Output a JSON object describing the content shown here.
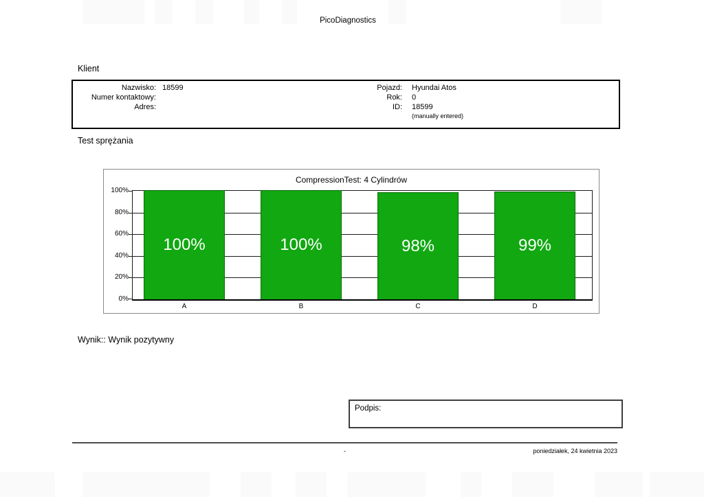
{
  "report": {
    "title": "PicoDiagnostics",
    "client_heading": "Klient",
    "test_heading": "Test sprężania",
    "result": {
      "label": "Wynik::",
      "value": "Wynik pozytywny"
    },
    "signature_label": "Podpis:",
    "footer": {
      "page_marker": "-",
      "date": "poniedziałek, 24 kwietnia 2023"
    }
  },
  "client": {
    "left_fields": [
      {
        "label": "Nazwisko:",
        "value": "18599"
      },
      {
        "label": "Numer kontaktowy:",
        "value": ""
      },
      {
        "label": "Adres:",
        "value": ""
      }
    ],
    "right_fields": [
      {
        "label": "Pojazd:",
        "value": "Hyundai Atos"
      },
      {
        "label": "Rok:",
        "value": "0"
      },
      {
        "label": "ID:",
        "value": "18599"
      }
    ],
    "note": "(manually entered)"
  },
  "chart_data": {
    "type": "bar",
    "title": "CompressionTest: 4 Cylindrów",
    "categories": [
      "A",
      "B",
      "C",
      "D"
    ],
    "values": [
      100,
      100,
      98,
      99
    ],
    "value_labels": [
      "100%",
      "100%",
      "98%",
      "99%"
    ],
    "y_ticks": [
      "0%",
      "20%",
      "40%",
      "60%",
      "80%",
      "100%"
    ],
    "y_tick_values": [
      0,
      20,
      40,
      60,
      80,
      100
    ],
    "ylim": [
      0,
      100
    ],
    "grid": true,
    "legend": false,
    "bar_color": "#11a811",
    "bar_border_color": "#0a6d0a",
    "bar_label_color": "#ffffff"
  }
}
